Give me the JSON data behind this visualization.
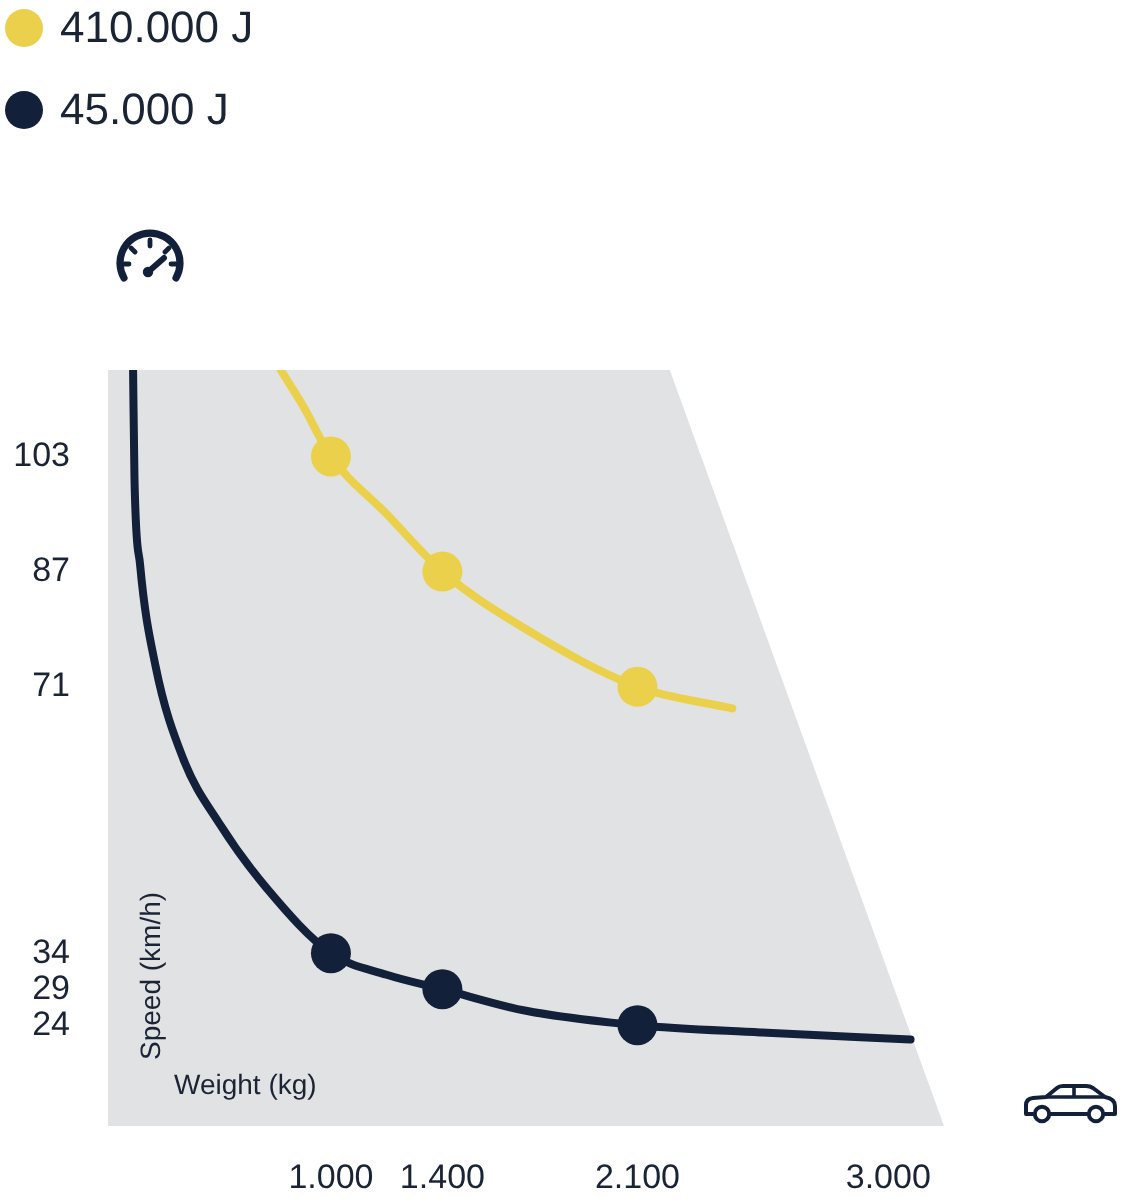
{
  "chart_data": {
    "type": "line",
    "xlabel": "Weight (kg)",
    "ylabel": "Speed (km/h)",
    "xlim": [
      200,
      3200
    ],
    "xticks": [
      {
        "value": 1000,
        "label": "1.000"
      },
      {
        "value": 1400,
        "label": "1.400"
      },
      {
        "value": 2100,
        "label": "2.100"
      },
      {
        "value": 3000,
        "label": "3.000"
      }
    ],
    "ylim": [
      10,
      115
    ],
    "yticks": [
      24,
      29,
      34,
      71,
      87,
      103
    ],
    "legend": "top left",
    "series": [
      {
        "name": "410.000 J",
        "type": "line",
        "color": "#ebd04c",
        "marker": "none",
        "x": [
          820,
          900,
          1000,
          1200,
          1400,
          1700,
          2100,
          2440
        ],
        "values": [
          115,
          110,
          103,
          95,
          87,
          79,
          71,
          68
        ]
      },
      {
        "type": "scatter",
        "color": "#ebd04c",
        "marker": "circle",
        "x": [
          1000,
          1400,
          2100
        ],
        "values": [
          103,
          87,
          71
        ]
      },
      {
        "name": "45.000 J",
        "type": "line",
        "color": "#13203a",
        "marker": "none",
        "x": [
          290,
          295,
          315,
          370,
          470,
          600,
          770,
          1000,
          1200,
          1400,
          1700,
          2100,
          2540,
          3080
        ],
        "values": [
          115,
          100,
          88,
          74,
          61,
          52,
          43,
          34,
          31,
          29,
          26,
          24,
          23,
          22
        ]
      },
      {
        "type": "scatter",
        "color": "#13203a",
        "marker": "circle",
        "x": [
          1000,
          1400,
          2100
        ],
        "values": [
          34,
          29,
          24
        ]
      }
    ]
  }
}
